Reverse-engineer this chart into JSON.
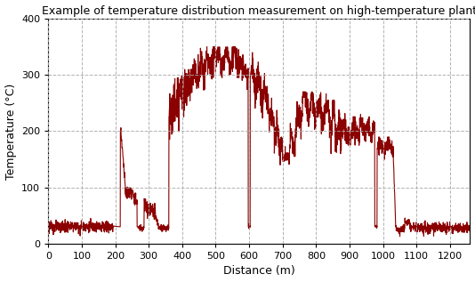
{
  "title": "Example of temperature distribution measurement on high-temperature plant",
  "xlabel": "Distance (m)",
  "ylabel": "Temperature (°C)",
  "xlim": [
    0,
    1260
  ],
  "ylim": [
    0,
    400
  ],
  "xticks": [
    0,
    100,
    200,
    300,
    400,
    500,
    600,
    700,
    800,
    900,
    1000,
    1100,
    1200
  ],
  "yticks": [
    0,
    100,
    200,
    300,
    400
  ],
  "line_color": "#8B0000",
  "line_width": 0.8,
  "grid_color": "#AAAAAA",
  "grid_style": "--",
  "background_color": "#FFFFFF",
  "title_fontsize": 9,
  "axis_label_fontsize": 9,
  "tick_fontsize": 8
}
